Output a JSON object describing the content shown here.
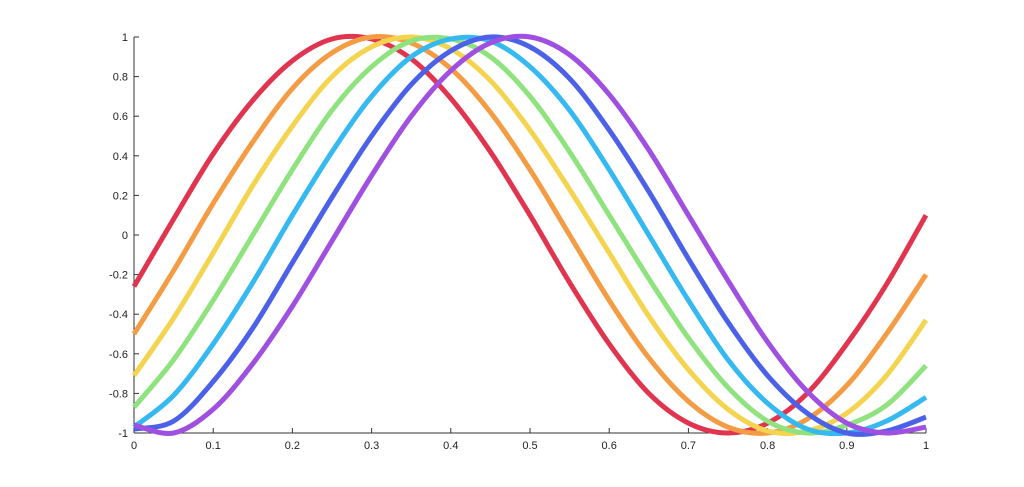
{
  "chart_data": {
    "type": "line",
    "title": "",
    "xlabel": "",
    "ylabel": "",
    "xlim": [
      0,
      1
    ],
    "ylim": [
      -1,
      1
    ],
    "grid": false,
    "legend": "none",
    "x_ticks": [
      "0",
      "0.1",
      "0.2",
      "0.3",
      "0.4",
      "0.5",
      "0.6",
      "0.7",
      "0.8",
      "0.9",
      "1"
    ],
    "y_ticks": [
      "1",
      "0.8",
      "0.6",
      "0.4",
      "0.2",
      "0",
      "-0.2",
      "-0.4",
      "-0.6",
      "-0.8",
      "-1"
    ],
    "x": [
      0,
      0.05,
      0.1,
      0.15,
      0.2,
      0.25,
      0.3,
      0.35,
      0.4,
      0.45,
      0.5,
      0.55,
      0.6,
      0.65,
      0.7,
      0.75,
      0.8,
      0.85,
      0.9,
      0.95,
      1
    ],
    "series": [
      {
        "color": "#e0344f",
        "values": [
          -0.26,
          0.08,
          0.41,
          0.68,
          0.88,
          0.99,
          0.99,
          0.89,
          0.69,
          0.42,
          0.1,
          -0.24,
          -0.55,
          -0.8,
          -0.95,
          -1,
          -0.95,
          -0.8,
          -0.55,
          -0.25,
          0.1
        ]
      },
      {
        "color": "#f49c44",
        "values": [
          -0.5,
          -0.18,
          0.16,
          0.47,
          0.74,
          0.92,
          1,
          0.97,
          0.84,
          0.62,
          0.33,
          0.0,
          -0.33,
          -0.62,
          -0.84,
          -0.97,
          -1,
          -0.93,
          -0.76,
          -0.5,
          -0.2
        ]
      },
      {
        "color": "#f4d44e",
        "values": [
          -0.71,
          -0.42,
          -0.09,
          0.25,
          0.55,
          0.8,
          0.95,
          1,
          0.94,
          0.78,
          0.53,
          0.23,
          -0.09,
          -0.41,
          -0.68,
          -0.88,
          -0.99,
          -0.99,
          -0.9,
          -0.71,
          -0.43
        ]
      },
      {
        "color": "#8ee37e",
        "values": [
          -0.87,
          -0.63,
          -0.33,
          0.0,
          0.33,
          0.63,
          0.85,
          0.98,
          0.99,
          0.9,
          0.7,
          0.42,
          0.1,
          -0.22,
          -0.52,
          -0.77,
          -0.94,
          -1,
          -0.96,
          -0.86,
          -0.66
        ]
      },
      {
        "color": "#35b9f0",
        "values": [
          -0.97,
          -0.81,
          -0.55,
          -0.24,
          0.1,
          0.42,
          0.7,
          0.9,
          0.99,
          0.98,
          0.85,
          0.63,
          0.33,
          0.0,
          -0.33,
          -0.63,
          -0.85,
          -0.98,
          -1,
          -0.94,
          -0.82
        ]
      },
      {
        "color": "#4b62e8",
        "values": [
          -0.98,
          -0.94,
          -0.74,
          -0.47,
          -0.14,
          0.19,
          0.5,
          0.76,
          0.93,
          1,
          0.95,
          0.79,
          0.53,
          0.22,
          -0.12,
          -0.44,
          -0.71,
          -0.9,
          -1,
          -0.99,
          -0.92
        ]
      },
      {
        "color": "#a050e0",
        "values": [
          -0.96,
          -1,
          -0.88,
          -0.65,
          -0.36,
          -0.03,
          0.3,
          0.6,
          0.83,
          0.97,
          1,
          0.91,
          0.71,
          0.43,
          0.1,
          -0.23,
          -0.54,
          -0.79,
          -0.95,
          -1,
          -0.97
        ]
      }
    ]
  }
}
